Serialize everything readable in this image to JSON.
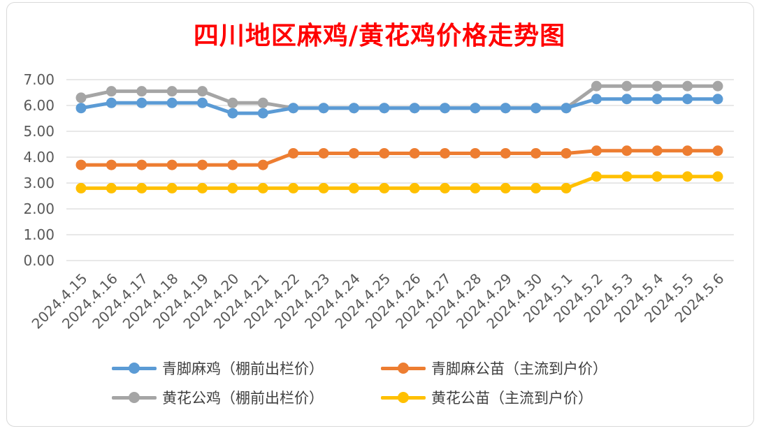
{
  "title": "四川地区麻鸡/黄花鸡价格走势图",
  "chart_data": {
    "type": "line",
    "title": "四川地区麻鸡/黄花鸡价格走势图",
    "xlabel": "",
    "ylabel": "",
    "ylim": [
      0,
      7
    ],
    "yticks": [
      "0.00",
      "1.00",
      "2.00",
      "3.00",
      "4.00",
      "5.00",
      "6.00",
      "7.00"
    ],
    "grid": true,
    "legend_position": "bottom",
    "x": [
      "2024.4.15",
      "2024.4.16",
      "2024.4.17",
      "2024.4.18",
      "2024.4.19",
      "2024.4.20",
      "2024.4.21",
      "2024.4.22",
      "2024.4.23",
      "2024.4.24",
      "2024.4.25",
      "2024.4.26",
      "2024.4.27",
      "2024.4.28",
      "2024.4.29",
      "2024.4.30",
      "2024.5.1",
      "2024.5.2",
      "2024.5.3",
      "2024.5.4",
      "2024.5.5",
      "2024.5.6"
    ],
    "series": [
      {
        "name": "青脚麻鸡（棚前出栏价）",
        "color": "#5b9bd5",
        "values": [
          5.9,
          6.1,
          6.1,
          6.1,
          6.1,
          5.7,
          5.7,
          5.9,
          5.9,
          5.9,
          5.9,
          5.9,
          5.9,
          5.9,
          5.9,
          5.9,
          5.9,
          6.25,
          6.25,
          6.25,
          6.25,
          6.25
        ]
      },
      {
        "name": "青脚麻公苗（主流到户价）",
        "color": "#ed7d31",
        "values": [
          3.7,
          3.7,
          3.7,
          3.7,
          3.7,
          3.7,
          3.7,
          4.15,
          4.15,
          4.15,
          4.15,
          4.15,
          4.15,
          4.15,
          4.15,
          4.15,
          4.15,
          4.25,
          4.25,
          4.25,
          4.25,
          4.25
        ]
      },
      {
        "name": "黄花公鸡（棚前出栏价）",
        "color": "#a5a5a5",
        "values": [
          6.3,
          6.55,
          6.55,
          6.55,
          6.55,
          6.1,
          6.1,
          5.9,
          5.9,
          5.9,
          5.9,
          5.9,
          5.9,
          5.9,
          5.9,
          5.9,
          5.9,
          6.75,
          6.75,
          6.75,
          6.75,
          6.75
        ]
      },
      {
        "name": "黄花公苗（主流到户价）",
        "color": "#ffc000",
        "values": [
          2.8,
          2.8,
          2.8,
          2.8,
          2.8,
          2.8,
          2.8,
          2.8,
          2.8,
          2.8,
          2.8,
          2.8,
          2.8,
          2.8,
          2.8,
          2.8,
          2.8,
          3.25,
          3.25,
          3.25,
          3.25,
          3.25
        ]
      }
    ]
  },
  "legend": [
    {
      "label": "青脚麻鸡（棚前出栏价）",
      "color": "#5b9bd5"
    },
    {
      "label": "青脚麻公苗（主流到户价）",
      "color": "#ed7d31"
    },
    {
      "label": "黄花公鸡（棚前出栏价）",
      "color": "#a5a5a5"
    },
    {
      "label": "黄花公苗（主流到户价）",
      "color": "#ffc000"
    }
  ]
}
